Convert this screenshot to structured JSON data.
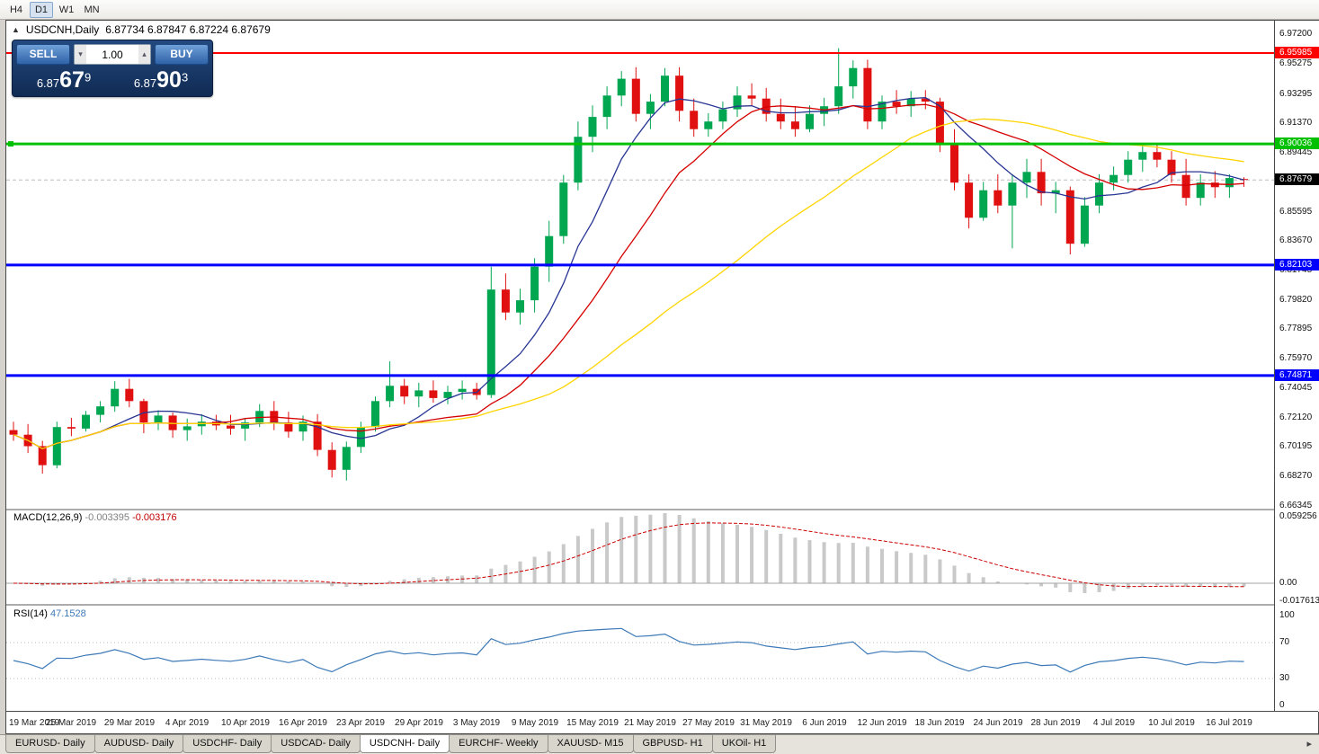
{
  "toolbar": {
    "periods": [
      {
        "label": "H4",
        "active": false
      },
      {
        "label": "D1",
        "active": true
      },
      {
        "label": "W1",
        "active": false
      },
      {
        "label": "MN",
        "active": false
      }
    ]
  },
  "icons": {
    "one_click_toggle": "▲",
    "volume_down": "▾",
    "volume_up": "▴",
    "tab_scroll_right": "▸"
  },
  "chart": {
    "title_symbol": "USDCNH,Daily",
    "title_quote": "6.87734 6.87847 6.87224 6.87679",
    "up_color": "#00a650",
    "down_color": "#e01010",
    "one_click": {
      "sell_label": "SELL",
      "buy_label": "BUY",
      "volume": "1.00",
      "sell_price": {
        "base": "6.87",
        "pips": "67",
        "point": "9"
      },
      "buy_price": {
        "base": "6.87",
        "pips": "90",
        "point": "3"
      }
    },
    "levels": [
      {
        "label": "6.95985",
        "value": 6.95985,
        "color": "#ff0000",
        "thickness": 2,
        "handle": false
      },
      {
        "label": "6.90036",
        "value": 6.90036,
        "color": "#00c000",
        "thickness": 3,
        "handle": true
      },
      {
        "label": "6.82103",
        "value": 6.82103,
        "color": "#0000ff",
        "thickness": 3,
        "handle": false
      },
      {
        "label": "6.74871",
        "value": 6.74871,
        "color": "#0000ff",
        "thickness": 3,
        "handle": false
      }
    ],
    "current_price": {
      "label": "6.87679",
      "value": 6.87679,
      "color": "#000000"
    },
    "price_axis_ticks": [
      {
        "label": "6.97200",
        "value": 6.972
      },
      {
        "label": "6.95275",
        "value": 6.95275
      },
      {
        "label": "6.93295",
        "value": 6.93295
      },
      {
        "label": "6.91370",
        "value": 6.9137
      },
      {
        "label": "6.89445",
        "value": 6.89445
      },
      {
        "label": "6.87520",
        "value": 6.8752
      },
      {
        "label": "6.85595",
        "value": 6.85595
      },
      {
        "label": "6.83670",
        "value": 6.8367
      },
      {
        "label": "6.81745",
        "value": 6.81745
      },
      {
        "label": "6.79820",
        "value": 6.7982
      },
      {
        "label": "6.77895",
        "value": 6.77895
      },
      {
        "label": "6.75970",
        "value": 6.7597
      },
      {
        "label": "6.74045",
        "value": 6.74045
      },
      {
        "label": "6.72120",
        "value": 6.7212
      },
      {
        "label": "6.70195",
        "value": 6.70195
      },
      {
        "label": "6.68270",
        "value": 6.6827
      },
      {
        "label": "6.66345",
        "value": 6.66345
      }
    ]
  },
  "macd": {
    "label": "MACD(12,26,9)",
    "value_main": "-0.003395",
    "value_signal": "-0.003176",
    "params": {
      "fast": 12,
      "slow": 26,
      "signal": 9
    },
    "axis": [
      {
        "label": "0.059256",
        "value": 0.059256
      },
      {
        "label": "0.00",
        "value": 0
      },
      {
        "label": "-0.017613",
        "value": -0.017613
      }
    ]
  },
  "rsi": {
    "label": "RSI(14)",
    "value_text": "47.1528",
    "period": 14,
    "axis": [
      {
        "label": "100",
        "value": 100
      },
      {
        "label": "70",
        "value": 70
      },
      {
        "label": "30",
        "value": 30
      },
      {
        "label": "0",
        "value": 0
      }
    ],
    "levels": [
      70,
      30
    ]
  },
  "tabs": {
    "items": [
      {
        "label": "EURUSD- Daily",
        "active": false
      },
      {
        "label": "AUDUSD- Daily",
        "active": false
      },
      {
        "label": "USDCHF- Daily",
        "active": false
      },
      {
        "label": "USDCAD- Daily",
        "active": false
      },
      {
        "label": "USDCNH- Daily",
        "active": true
      },
      {
        "label": "EURCHF- Weekly",
        "active": false
      },
      {
        "label": "XAUUSD- M15",
        "active": false
      },
      {
        "label": "GBPUSD- H1",
        "active": false
      },
      {
        "label": "UKOil- H1",
        "active": false
      }
    ]
  },
  "chart_data": {
    "type": "candlestick",
    "symbol": "USDCNH",
    "timeframe": "Daily",
    "y_range": [
      6.661,
      6.981
    ],
    "ohlc": [
      [
        6.713,
        6.7185,
        6.706,
        6.71
      ],
      [
        6.71,
        6.717,
        6.698,
        6.7025
      ],
      [
        6.7025,
        6.706,
        6.6845,
        6.69
      ],
      [
        6.69,
        6.7185,
        6.688,
        6.715
      ],
      [
        6.715,
        6.721,
        6.709,
        6.714
      ],
      [
        6.714,
        6.7255,
        6.712,
        6.723
      ],
      [
        6.723,
        6.732,
        6.718,
        6.7285
      ],
      [
        6.7285,
        6.745,
        6.725,
        6.74
      ],
      [
        6.74,
        6.7465,
        6.728,
        6.732
      ],
      [
        6.732,
        6.7335,
        6.711,
        6.718
      ],
      [
        6.718,
        6.726,
        6.713,
        6.7225
      ],
      [
        6.7225,
        6.7245,
        6.708,
        6.713
      ],
      [
        6.713,
        6.7205,
        6.706,
        6.7155
      ],
      [
        6.7155,
        6.7235,
        6.71,
        6.7185
      ],
      [
        6.7185,
        6.723,
        6.713,
        6.716
      ],
      [
        6.716,
        6.723,
        6.71,
        6.714
      ],
      [
        6.714,
        6.7205,
        6.706,
        6.718
      ],
      [
        6.718,
        6.73,
        6.715,
        6.7255
      ],
      [
        6.7255,
        6.732,
        6.713,
        6.718
      ],
      [
        6.718,
        6.725,
        6.708,
        6.712
      ],
      [
        6.712,
        6.7225,
        6.706,
        6.7185
      ],
      [
        6.7185,
        6.7235,
        6.696,
        6.7
      ],
      [
        6.7,
        6.705,
        6.682,
        6.687
      ],
      [
        6.687,
        6.7055,
        6.68,
        6.702
      ],
      [
        6.702,
        6.7185,
        6.698,
        6.715
      ],
      [
        6.715,
        6.735,
        6.712,
        6.732
      ],
      [
        6.732,
        6.758,
        6.728,
        6.742
      ],
      [
        6.742,
        6.7465,
        6.73,
        6.735
      ],
      [
        6.735,
        6.744,
        6.728,
        6.739
      ],
      [
        6.739,
        6.7455,
        6.731,
        6.734
      ],
      [
        6.734,
        6.742,
        6.73,
        6.738
      ],
      [
        6.738,
        6.7455,
        6.733,
        6.74
      ],
      [
        6.74,
        6.744,
        6.733,
        6.736
      ],
      [
        6.736,
        6.82,
        6.734,
        6.805
      ],
      [
        6.805,
        6.8155,
        6.785,
        6.79
      ],
      [
        6.79,
        6.8055,
        6.782,
        6.798
      ],
      [
        6.798,
        6.8255,
        6.79,
        6.82
      ],
      [
        6.82,
        6.85,
        6.81,
        6.84
      ],
      [
        6.84,
        6.88,
        6.835,
        6.875
      ],
      [
        6.875,
        6.915,
        6.87,
        6.905
      ],
      [
        6.905,
        6.9255,
        6.895,
        6.918
      ],
      [
        6.918,
        6.938,
        6.91,
        6.932
      ],
      [
        6.932,
        6.948,
        6.925,
        6.943
      ],
      [
        6.943,
        6.9505,
        6.915,
        6.92
      ],
      [
        6.92,
        6.933,
        6.91,
        6.928
      ],
      [
        6.928,
        6.95,
        6.925,
        6.945
      ],
      [
        6.945,
        6.9505,
        6.915,
        6.922
      ],
      [
        6.922,
        6.93,
        6.905,
        6.91
      ],
      [
        6.91,
        6.9205,
        6.905,
        6.915
      ],
      [
        6.915,
        6.928,
        6.91,
        6.923
      ],
      [
        6.923,
        6.938,
        6.918,
        6.932
      ],
      [
        6.932,
        6.94,
        6.925,
        6.93
      ],
      [
        6.93,
        6.937,
        6.915,
        6.92
      ],
      [
        6.92,
        6.93,
        6.91,
        6.915
      ],
      [
        6.915,
        6.925,
        6.905,
        6.91
      ],
      [
        6.91,
        6.9255,
        6.908,
        6.92
      ],
      [
        6.92,
        6.9305,
        6.912,
        6.925
      ],
      [
        6.925,
        6.963,
        6.92,
        6.938
      ],
      [
        6.938,
        6.955,
        6.93,
        6.95
      ],
      [
        6.95,
        6.9555,
        6.91,
        6.915
      ],
      [
        6.915,
        6.932,
        6.91,
        6.928
      ],
      [
        6.928,
        6.9355,
        6.92,
        6.925
      ],
      [
        6.925,
        6.935,
        6.918,
        6.93
      ],
      [
        6.93,
        6.9355,
        6.923,
        6.928
      ],
      [
        6.928,
        6.9305,
        6.895,
        6.9
      ],
      [
        6.9,
        6.91,
        6.87,
        6.875
      ],
      [
        6.875,
        6.8805,
        6.845,
        6.852
      ],
      [
        6.852,
        6.8755,
        6.85,
        6.87
      ],
      [
        6.87,
        6.8805,
        6.855,
        6.86
      ],
      [
        6.86,
        6.8805,
        6.832,
        6.875
      ],
      [
        6.875,
        6.8905,
        6.865,
        6.882
      ],
      [
        6.882,
        6.8905,
        6.86,
        6.868
      ],
      [
        6.868,
        6.8755,
        6.855,
        6.87
      ],
      [
        6.87,
        6.8725,
        6.828,
        6.835
      ],
      [
        6.835,
        6.8655,
        6.833,
        6.86
      ],
      [
        6.86,
        6.8805,
        6.855,
        6.875
      ],
      [
        6.875,
        6.8855,
        6.87,
        6.88
      ],
      [
        6.88,
        6.8955,
        6.875,
        6.89
      ],
      [
        6.89,
        6.9005,
        6.882,
        6.895
      ],
      [
        6.895,
        6.9005,
        6.885,
        6.89
      ],
      [
        6.89,
        6.8955,
        6.875,
        6.88
      ],
      [
        6.88,
        6.8905,
        6.86,
        6.865
      ],
      [
        6.865,
        6.8805,
        6.86,
        6.875
      ],
      [
        6.875,
        6.8825,
        6.865,
        6.872
      ],
      [
        6.872,
        6.8805,
        6.865,
        6.878
      ],
      [
        6.87734,
        6.87847,
        6.87224,
        6.87679
      ]
    ],
    "date_labels": [
      {
        "label": "19 Mar 2019",
        "index": 0
      },
      {
        "label": "25 Mar 2019",
        "index": 4
      },
      {
        "label": "29 Mar 2019",
        "index": 8
      },
      {
        "label": "4 Apr 2019",
        "index": 12
      },
      {
        "label": "10 Apr 2019",
        "index": 16
      },
      {
        "label": "16 Apr 2019",
        "index": 20
      },
      {
        "label": "23 Apr 2019",
        "index": 24
      },
      {
        "label": "29 Apr 2019",
        "index": 28
      },
      {
        "label": "3 May 2019",
        "index": 32
      },
      {
        "label": "9 May 2019",
        "index": 36
      },
      {
        "label": "15 May 2019",
        "index": 40
      },
      {
        "label": "21 May 2019",
        "index": 44
      },
      {
        "label": "27 May 2019",
        "index": 48
      },
      {
        "label": "31 May 2019",
        "index": 52
      },
      {
        "label": "6 Jun 2019",
        "index": 56
      },
      {
        "label": "12 Jun 2019",
        "index": 60
      },
      {
        "label": "18 Jun 2019",
        "index": 64
      },
      {
        "label": "24 Jun 2019",
        "index": 68
      },
      {
        "label": "28 Jun 2019",
        "index": 72
      },
      {
        "label": "4 Jul 2019",
        "index": 76
      },
      {
        "label": "10 Jul 2019",
        "index": 80
      },
      {
        "label": "16 Jul 2019",
        "index": 84
      }
    ],
    "moving_averages": [
      {
        "name": "MA-fast",
        "window": 7,
        "color": "#283593"
      },
      {
        "name": "MA-medium",
        "window": 14,
        "color": "#d40000"
      },
      {
        "name": "MA-slow",
        "window": 30,
        "color": "#ffd400"
      }
    ]
  }
}
